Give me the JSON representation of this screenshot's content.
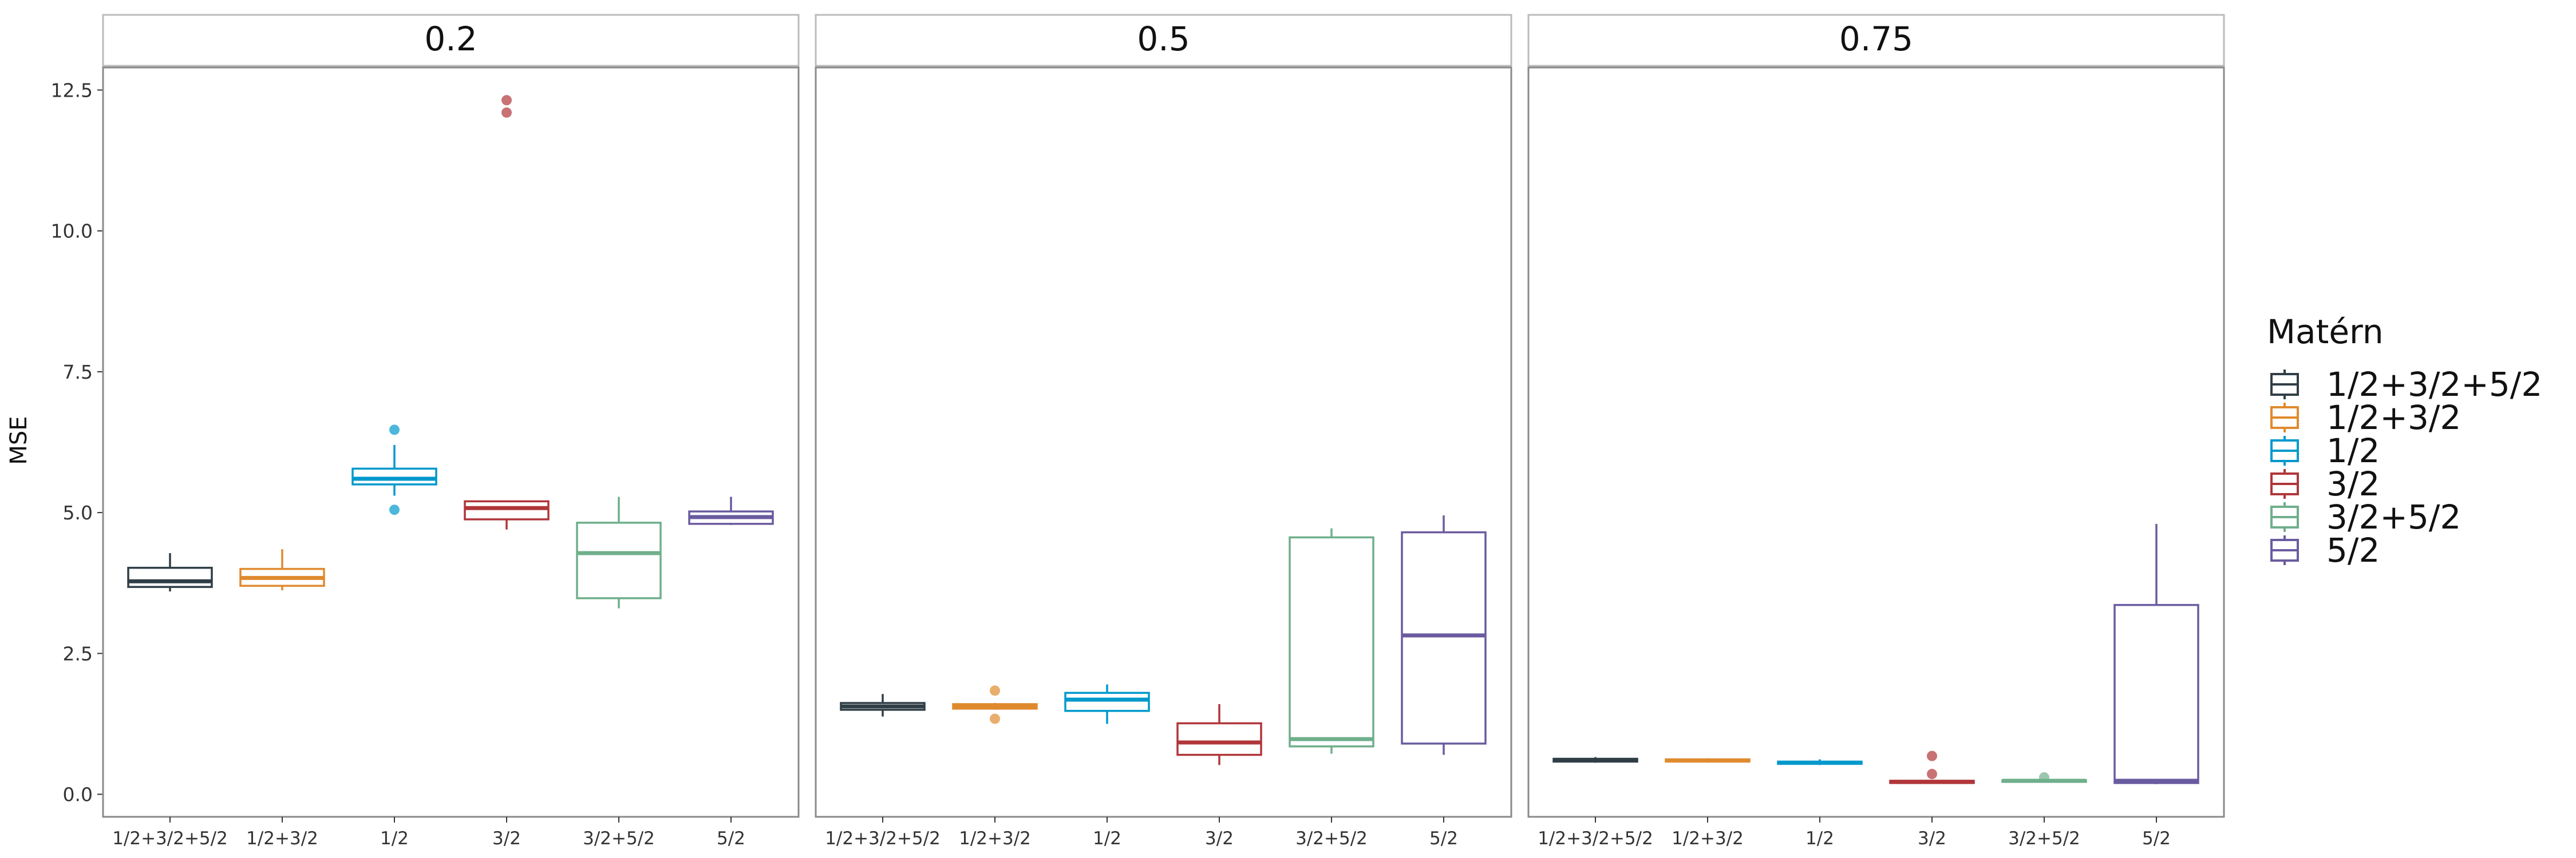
{
  "chart_data": {
    "type": "box",
    "ylabel": "MSE",
    "ylim": [
      -0.4,
      12.9
    ],
    "yticks": [
      0.0,
      2.5,
      5.0,
      7.5,
      10.0,
      12.5
    ],
    "ytick_labels": [
      "0.0",
      "2.5",
      "5.0",
      "7.5",
      "10.0",
      "12.5"
    ],
    "categories": [
      "1/2+3/2+5/2",
      "1/2+3/2",
      "1/2",
      "3/2",
      "3/2+5/2",
      "5/2"
    ],
    "legend": {
      "title": "Matérn",
      "placement": "right",
      "entries": [
        {
          "label": "1/2+3/2+5/2",
          "color": "#2F3E46"
        },
        {
          "label": "1/2+3/2",
          "color": "#E08A2E"
        },
        {
          "label": "1/2",
          "color": "#0099CC"
        },
        {
          "label": "3/2",
          "color": "#B0363A"
        },
        {
          "label": "3/2+5/2",
          "color": "#6FAF8C"
        },
        {
          "label": "5/2",
          "color": "#6A5BA0"
        }
      ]
    },
    "panels": [
      {
        "title": "0.2",
        "boxes": [
          {
            "category": "1/2+3/2+5/2",
            "whisker_low": 3.6,
            "q1": 3.68,
            "median": 3.78,
            "q3": 4.02,
            "whisker_high": 4.28,
            "outliers": []
          },
          {
            "category": "1/2+3/2",
            "whisker_low": 3.62,
            "q1": 3.7,
            "median": 3.84,
            "q3": 4.0,
            "whisker_high": 4.35,
            "outliers": []
          },
          {
            "category": "1/2",
            "whisker_low": 5.3,
            "q1": 5.5,
            "median": 5.6,
            "q3": 5.78,
            "whisker_high": 6.2,
            "outliers": [
              6.47,
              5.05
            ]
          },
          {
            "category": "3/2",
            "whisker_low": 4.7,
            "q1": 4.88,
            "median": 5.08,
            "q3": 5.2,
            "whisker_high": 5.2,
            "outliers": [
              12.32,
              12.1
            ]
          },
          {
            "category": "3/2+5/2",
            "whisker_low": 3.3,
            "q1": 3.48,
            "median": 4.28,
            "q3": 4.82,
            "whisker_high": 5.28,
            "outliers": []
          },
          {
            "category": "5/2",
            "whisker_low": 4.78,
            "q1": 4.8,
            "median": 4.92,
            "q3": 5.02,
            "whisker_high": 5.28,
            "outliers": []
          }
        ]
      },
      {
        "title": "0.5",
        "boxes": [
          {
            "category": "1/2+3/2+5/2",
            "whisker_low": 1.38,
            "q1": 1.5,
            "median": 1.56,
            "q3": 1.62,
            "whisker_high": 1.78,
            "outliers": []
          },
          {
            "category": "1/2+3/2",
            "whisker_low": 1.5,
            "q1": 1.52,
            "median": 1.56,
            "q3": 1.6,
            "whisker_high": 1.62,
            "outliers": [
              1.84,
              1.34
            ]
          },
          {
            "category": "1/2",
            "whisker_low": 1.25,
            "q1": 1.48,
            "median": 1.68,
            "q3": 1.8,
            "whisker_high": 1.95,
            "outliers": []
          },
          {
            "category": "3/2",
            "whisker_low": 0.52,
            "q1": 0.7,
            "median": 0.92,
            "q3": 1.26,
            "whisker_high": 1.6,
            "outliers": []
          },
          {
            "category": "3/2+5/2",
            "whisker_low": 0.72,
            "q1": 0.85,
            "median": 0.98,
            "q3": 4.56,
            "whisker_high": 4.72,
            "outliers": []
          },
          {
            "category": "5/2",
            "whisker_low": 0.7,
            "q1": 0.9,
            "median": 2.82,
            "q3": 4.65,
            "whisker_high": 4.95,
            "outliers": []
          }
        ]
      },
      {
        "title": "0.75",
        "boxes": [
          {
            "category": "1/2+3/2+5/2",
            "whisker_low": 0.56,
            "q1": 0.58,
            "median": 0.6,
            "q3": 0.63,
            "whisker_high": 0.66,
            "outliers": []
          },
          {
            "category": "1/2+3/2",
            "whisker_low": 0.56,
            "q1": 0.58,
            "median": 0.6,
            "q3": 0.62,
            "whisker_high": 0.64,
            "outliers": []
          },
          {
            "category": "1/2",
            "whisker_low": 0.52,
            "q1": 0.54,
            "median": 0.56,
            "q3": 0.58,
            "whisker_high": 0.62,
            "outliers": []
          },
          {
            "category": "3/2",
            "whisker_low": 0.19,
            "q1": 0.2,
            "median": 0.22,
            "q3": 0.24,
            "whisker_high": 0.26,
            "outliers": [
              0.68,
              0.36
            ]
          },
          {
            "category": "3/2+5/2",
            "whisker_low": 0.21,
            "q1": 0.22,
            "median": 0.24,
            "q3": 0.25,
            "whisker_high": 0.27,
            "outliers": [
              0.3
            ]
          },
          {
            "category": "5/2",
            "whisker_low": 0.18,
            "q1": 0.2,
            "median": 0.24,
            "q3": 3.36,
            "whisker_high": 4.8,
            "outliers": []
          }
        ]
      }
    ]
  }
}
